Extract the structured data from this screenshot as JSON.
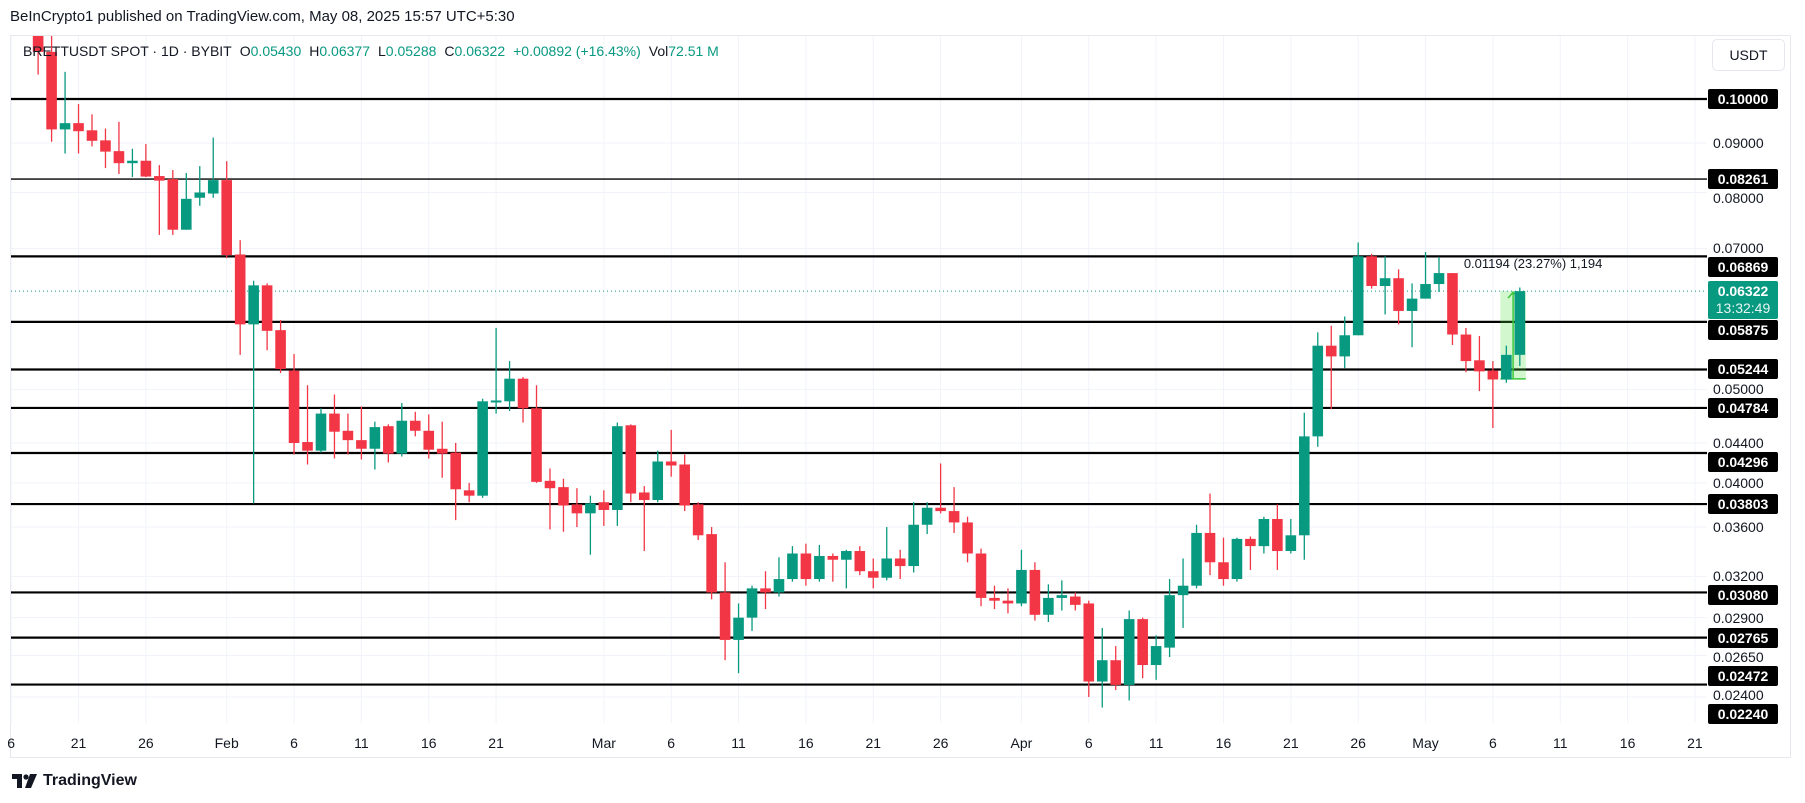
{
  "header": {
    "published": "BeInCrypto1 published on TradingView.com, May 08, 2025 15:57 UTC+5:30"
  },
  "legend": {
    "symbol": "BRETTUSDT SPOT · 1D · BYBIT",
    "o_label": "O",
    "open": "0.05430",
    "h_label": "H",
    "high": "0.06377",
    "l_label": "L",
    "low": "0.05288",
    "c_label": "C",
    "close": "0.06322",
    "change": "+0.00892 (+16.43%)",
    "vol_label": "Vol",
    "volume": "72.51 M"
  },
  "price_axis": {
    "currency_button": "USDT",
    "tick_labels": [
      "0.09000",
      "0.08000",
      "0.07000",
      "0.05000",
      "0.04400",
      "0.04000",
      "0.03600",
      "0.03200",
      "0.02900",
      "0.02650",
      "0.02400"
    ],
    "level_labels": [
      "0.10000",
      "0.08261",
      "0.06869",
      "0.05875",
      "0.05244",
      "0.04784",
      "0.04296",
      "0.03803",
      "0.03080",
      "0.02765",
      "0.02472",
      "0.02240"
    ],
    "current_price": "0.06322",
    "countdown": "13:32:49"
  },
  "time_axis": {
    "labels": [
      {
        "date": "2025-01-16",
        "text": "6"
      },
      {
        "date": "2025-01-21",
        "text": "21"
      },
      {
        "date": "2025-01-26",
        "text": "26"
      },
      {
        "date": "2025-02-01",
        "text": "Feb"
      },
      {
        "date": "2025-02-06",
        "text": "6"
      },
      {
        "date": "2025-02-11",
        "text": "11"
      },
      {
        "date": "2025-02-16",
        "text": "16"
      },
      {
        "date": "2025-02-21",
        "text": "21"
      },
      {
        "date": "2025-03-01",
        "text": "Mar"
      },
      {
        "date": "2025-03-06",
        "text": "6"
      },
      {
        "date": "2025-03-11",
        "text": "11"
      },
      {
        "date": "2025-03-16",
        "text": "16"
      },
      {
        "date": "2025-03-21",
        "text": "21"
      },
      {
        "date": "2025-03-26",
        "text": "26"
      },
      {
        "date": "2025-04-01",
        "text": "Apr"
      },
      {
        "date": "2025-04-06",
        "text": "6"
      },
      {
        "date": "2025-04-11",
        "text": "11"
      },
      {
        "date": "2025-04-16",
        "text": "16"
      },
      {
        "date": "2025-04-21",
        "text": "21"
      },
      {
        "date": "2025-04-26",
        "text": "26"
      },
      {
        "date": "2025-05-01",
        "text": "May"
      },
      {
        "date": "2025-05-06",
        "text": "6"
      },
      {
        "date": "2025-05-11",
        "text": "11"
      },
      {
        "date": "2025-05-16",
        "text": "16"
      },
      {
        "date": "2025-05-21",
        "text": "21"
      }
    ]
  },
  "measure": {
    "text": "0.01194 (23.27%) 1,194",
    "from": 0.05128,
    "to": 0.06322,
    "start_date": "2025-05-07",
    "end_date": "2025-05-08"
  },
  "footer": {
    "brand": "TradingView"
  },
  "colors": {
    "up": "#089981",
    "down": "#f23645",
    "level": "#000000",
    "measure": "#4caf50"
  },
  "chart_data": {
    "type": "candlestick",
    "title": "BRETTUSDT SPOT · 1D · BYBIT",
    "scale": "log",
    "ylim": [
      0.0224,
      0.1165
    ],
    "levels": [
      0.1,
      0.08261,
      0.06869,
      0.05875,
      0.05244,
      0.04784,
      0.04296,
      0.03803,
      0.0308,
      0.02765,
      0.02472
    ],
    "ticks": [
      0.09,
      0.08,
      0.07,
      0.05,
      0.044,
      0.04,
      0.036,
      0.032,
      0.029,
      0.0265,
      0.024
    ],
    "columns": [
      "date",
      "open",
      "high",
      "low",
      "close"
    ],
    "candles": [
      [
        "2025-01-18",
        0.118,
        0.122,
        0.106,
        0.1119
      ],
      [
        "2025-01-19",
        0.1119,
        0.117,
        0.0903,
        0.093
      ],
      [
        "2025-01-20",
        0.093,
        0.1067,
        0.0878,
        0.0944
      ],
      [
        "2025-01-21",
        0.0944,
        0.0988,
        0.0878,
        0.0926
      ],
      [
        "2025-01-22",
        0.0928,
        0.0964,
        0.0893,
        0.0905
      ],
      [
        "2025-01-23",
        0.0906,
        0.0932,
        0.0848,
        0.0882
      ],
      [
        "2025-01-24",
        0.0883,
        0.0947,
        0.0836,
        0.0858
      ],
      [
        "2025-01-25",
        0.0858,
        0.0888,
        0.083,
        0.0863
      ],
      [
        "2025-01-26",
        0.0863,
        0.0898,
        0.083,
        0.0831
      ],
      [
        "2025-01-27",
        0.0832,
        0.0854,
        0.0723,
        0.0823
      ],
      [
        "2025-01-28",
        0.0826,
        0.0844,
        0.0723,
        0.0732
      ],
      [
        "2025-01-29",
        0.0732,
        0.0838,
        0.0732,
        0.0788
      ],
      [
        "2025-01-30",
        0.079,
        0.0852,
        0.0775,
        0.08
      ],
      [
        "2025-01-31",
        0.0798,
        0.0912,
        0.079,
        0.0824
      ],
      [
        "2025-02-01",
        0.0824,
        0.0862,
        0.0684,
        0.0689
      ],
      [
        "2025-02-02",
        0.069,
        0.0714,
        0.0543,
        0.0584
      ],
      [
        "2025-02-03",
        0.0584,
        0.0648,
        0.0381,
        0.0641
      ],
      [
        "2025-02-04",
        0.0641,
        0.0644,
        0.0549,
        0.0575
      ],
      [
        "2025-02-05",
        0.0576,
        0.059,
        0.052,
        0.0525
      ],
      [
        "2025-02-06",
        0.0523,
        0.0544,
        0.0428,
        0.044
      ],
      [
        "2025-02-07",
        0.0441,
        0.0505,
        0.0418,
        0.0432
      ],
      [
        "2025-02-08",
        0.0432,
        0.0478,
        0.043,
        0.0472
      ],
      [
        "2025-02-09",
        0.0472,
        0.0494,
        0.0424,
        0.0452
      ],
      [
        "2025-02-10",
        0.0453,
        0.0472,
        0.0428,
        0.0443
      ],
      [
        "2025-02-11",
        0.0443,
        0.048,
        0.0423,
        0.0434
      ],
      [
        "2025-02-12",
        0.0434,
        0.0463,
        0.0413,
        0.0457
      ],
      [
        "2025-02-13",
        0.0458,
        0.046,
        0.042,
        0.0429
      ],
      [
        "2025-02-14",
        0.0429,
        0.0484,
        0.0426,
        0.0464
      ],
      [
        "2025-02-15",
        0.0464,
        0.0474,
        0.0447,
        0.0453
      ],
      [
        "2025-02-16",
        0.0453,
        0.0471,
        0.0424,
        0.0433
      ],
      [
        "2025-02-17",
        0.0434,
        0.0463,
        0.0405,
        0.0429
      ],
      [
        "2025-02-18",
        0.043,
        0.044,
        0.0366,
        0.0394
      ],
      [
        "2025-02-19",
        0.0393,
        0.04,
        0.0382,
        0.0388
      ],
      [
        "2025-02-20",
        0.0388,
        0.0489,
        0.0386,
        0.0486
      ],
      [
        "2025-02-21",
        0.0486,
        0.0579,
        0.0472,
        0.0487
      ],
      [
        "2025-02-22",
        0.0486,
        0.0535,
        0.0475,
        0.0513
      ],
      [
        "2025-02-23",
        0.0513,
        0.0515,
        0.0462,
        0.0478
      ],
      [
        "2025-02-24",
        0.0478,
        0.0505,
        0.04,
        0.0401
      ],
      [
        "2025-02-25",
        0.0402,
        0.0414,
        0.0358,
        0.0395
      ],
      [
        "2025-02-26",
        0.0396,
        0.0404,
        0.0356,
        0.0379
      ],
      [
        "2025-02-27",
        0.038,
        0.0395,
        0.036,
        0.0372
      ],
      [
        "2025-02-28",
        0.0372,
        0.0388,
        0.0337,
        0.0381
      ],
      [
        "2025-03-01",
        0.0382,
        0.0393,
        0.0361,
        0.0375
      ],
      [
        "2025-03-02",
        0.0375,
        0.0462,
        0.0361,
        0.0458
      ],
      [
        "2025-03-03",
        0.0459,
        0.046,
        0.0382,
        0.039
      ],
      [
        "2025-03-04",
        0.0391,
        0.0397,
        0.034,
        0.0384
      ],
      [
        "2025-03-05",
        0.0384,
        0.0432,
        0.0382,
        0.0421
      ],
      [
        "2025-03-06",
        0.0421,
        0.0454,
        0.0406,
        0.0417
      ],
      [
        "2025-03-07",
        0.0418,
        0.0428,
        0.0374,
        0.0379
      ],
      [
        "2025-03-08",
        0.038,
        0.0382,
        0.0349,
        0.0353
      ],
      [
        "2025-03-09",
        0.0354,
        0.036,
        0.0303,
        0.0308
      ],
      [
        "2025-03-10",
        0.0308,
        0.0331,
        0.0262,
        0.0275
      ],
      [
        "2025-03-11",
        0.0275,
        0.03,
        0.0254,
        0.029
      ],
      [
        "2025-03-12",
        0.029,
        0.0313,
        0.0281,
        0.0311
      ],
      [
        "2025-03-13",
        0.0311,
        0.0324,
        0.0296,
        0.0308
      ],
      [
        "2025-03-14",
        0.0308,
        0.0335,
        0.0305,
        0.0318
      ],
      [
        "2025-03-15",
        0.0318,
        0.0344,
        0.0316,
        0.0338
      ],
      [
        "2025-03-16",
        0.0338,
        0.0346,
        0.0313,
        0.0318
      ],
      [
        "2025-03-17",
        0.0318,
        0.0345,
        0.0316,
        0.0336
      ],
      [
        "2025-03-18",
        0.0336,
        0.0338,
        0.0316,
        0.0333
      ],
      [
        "2025-03-19",
        0.0333,
        0.0341,
        0.0311,
        0.034
      ],
      [
        "2025-03-20",
        0.034,
        0.0344,
        0.0321,
        0.0324
      ],
      [
        "2025-03-21",
        0.0324,
        0.0334,
        0.0311,
        0.0319
      ],
      [
        "2025-03-22",
        0.0319,
        0.036,
        0.0317,
        0.0334
      ],
      [
        "2025-03-23",
        0.0334,
        0.0341,
        0.0318,
        0.0328
      ],
      [
        "2025-03-24",
        0.0328,
        0.0382,
        0.0323,
        0.0362
      ],
      [
        "2025-03-25",
        0.0362,
        0.0382,
        0.0354,
        0.0377
      ],
      [
        "2025-03-26",
        0.0377,
        0.0419,
        0.0372,
        0.0374
      ],
      [
        "2025-03-27",
        0.0374,
        0.0396,
        0.0355,
        0.0364
      ],
      [
        "2025-03-28",
        0.0364,
        0.0369,
        0.0331,
        0.0338
      ],
      [
        "2025-03-29",
        0.0338,
        0.0342,
        0.0298,
        0.0304
      ],
      [
        "2025-03-30",
        0.0304,
        0.0313,
        0.0296,
        0.0302
      ],
      [
        "2025-03-31",
        0.0302,
        0.0311,
        0.0293,
        0.03
      ],
      [
        "2025-04-01",
        0.03,
        0.0341,
        0.0298,
        0.0325
      ],
      [
        "2025-04-02",
        0.0325,
        0.0331,
        0.0288,
        0.0292
      ],
      [
        "2025-04-03",
        0.0292,
        0.0314,
        0.0287,
        0.0304
      ],
      [
        "2025-04-04",
        0.0304,
        0.0317,
        0.0295,
        0.0306
      ],
      [
        "2025-04-05",
        0.0305,
        0.0308,
        0.0295,
        0.0299
      ],
      [
        "2025-04-06",
        0.03,
        0.0302,
        0.024,
        0.0249
      ],
      [
        "2025-04-07",
        0.0249,
        0.0283,
        0.0234,
        0.0262
      ],
      [
        "2025-04-08",
        0.0262,
        0.0271,
        0.0244,
        0.0247
      ],
      [
        "2025-04-09",
        0.0247,
        0.0295,
        0.0238,
        0.0289
      ],
      [
        "2025-04-10",
        0.0289,
        0.029,
        0.0251,
        0.0259
      ],
      [
        "2025-04-11",
        0.0259,
        0.0278,
        0.025,
        0.0271
      ],
      [
        "2025-04-12",
        0.027,
        0.0318,
        0.0264,
        0.0306
      ],
      [
        "2025-04-13",
        0.0306,
        0.0334,
        0.0283,
        0.0313
      ],
      [
        "2025-04-14",
        0.0313,
        0.0362,
        0.0311,
        0.0355
      ],
      [
        "2025-04-15",
        0.0355,
        0.039,
        0.0321,
        0.0331
      ],
      [
        "2025-04-16",
        0.0331,
        0.0351,
        0.0313,
        0.0318
      ],
      [
        "2025-04-17",
        0.0318,
        0.0351,
        0.0316,
        0.035
      ],
      [
        "2025-04-18",
        0.035,
        0.0352,
        0.0325,
        0.0344
      ],
      [
        "2025-04-19",
        0.0344,
        0.0369,
        0.0338,
        0.0367
      ],
      [
        "2025-04-20",
        0.0367,
        0.038,
        0.0325,
        0.034
      ],
      [
        "2025-04-21",
        0.034,
        0.0367,
        0.0338,
        0.0353
      ],
      [
        "2025-04-22",
        0.0353,
        0.0473,
        0.0333,
        0.0447
      ],
      [
        "2025-04-23",
        0.0447,
        0.0573,
        0.0436,
        0.0555
      ],
      [
        "2025-04-24",
        0.0555,
        0.0582,
        0.0477,
        0.0541
      ],
      [
        "2025-04-25",
        0.0541,
        0.0595,
        0.0526,
        0.0569
      ],
      [
        "2025-04-26",
        0.0569,
        0.071,
        0.0569,
        0.0687
      ],
      [
        "2025-04-27",
        0.0687,
        0.0691,
        0.0636,
        0.064
      ],
      [
        "2025-04-28",
        0.064,
        0.0687,
        0.0598,
        0.0652
      ],
      [
        "2025-04-29",
        0.0652,
        0.0666,
        0.0584,
        0.0603
      ],
      [
        "2025-04-30",
        0.0603,
        0.0644,
        0.0553,
        0.0621
      ],
      [
        "2025-05-01",
        0.0621,
        0.0694,
        0.0621,
        0.0643
      ],
      [
        "2025-05-02",
        0.0643,
        0.0686,
        0.0631,
        0.066
      ],
      [
        "2025-05-03",
        0.066,
        0.066,
        0.0556,
        0.057
      ],
      [
        "2025-05-04",
        0.057,
        0.0579,
        0.0521,
        0.0535
      ],
      [
        "2025-05-05",
        0.0536,
        0.0568,
        0.0498,
        0.0522
      ],
      [
        "2025-05-06",
        0.0523,
        0.0535,
        0.0456,
        0.0512
      ],
      [
        "2025-05-07",
        0.0512,
        0.0555,
        0.0508,
        0.0543
      ],
      [
        "2025-05-08",
        0.0543,
        0.06377,
        0.05288,
        0.06322
      ]
    ]
  }
}
